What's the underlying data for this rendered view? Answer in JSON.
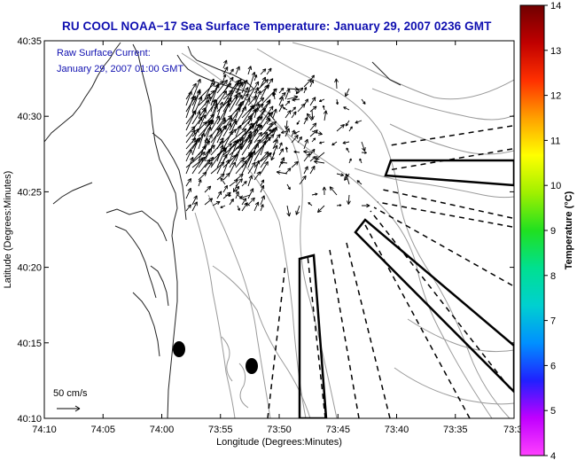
{
  "title": "RU COOL  NOAA−17  Sea Surface Temperature:  January 29, 2007 0236 GMT",
  "annotation": {
    "line1": "Raw Surface Current:",
    "line2": "January 29, 2007 01:00 GMT",
    "scale_label": "50 cm/s"
  },
  "axes": {
    "xlabel": "Longitude (Degrees:Minutes)",
    "ylabel": "Latitude (Degrees:Minutes)",
    "xticks": [
      "74:10",
      "74:05",
      "74:00",
      "73:55",
      "73:50",
      "73:45",
      "73:40",
      "73:35",
      "73:3"
    ],
    "yticks": [
      "40:35",
      "40:30",
      "40:25",
      "40:20",
      "40:15",
      "40:10"
    ]
  },
  "colorbar": {
    "label": "Temperature (°C)",
    "ticks": [
      "14",
      "13",
      "12",
      "11",
      "10",
      "9",
      "8",
      "7",
      "6",
      "5",
      "4"
    ],
    "min": 4,
    "max": 14,
    "colors": [
      "#ff40ff",
      "#c000ff",
      "#2020ff",
      "#0090ff",
      "#00d0d0",
      "#00e090",
      "#20e020",
      "#a0f000",
      "#ffff00",
      "#ffa000",
      "#ff3000",
      "#c00000",
      "#700000"
    ]
  }
}
